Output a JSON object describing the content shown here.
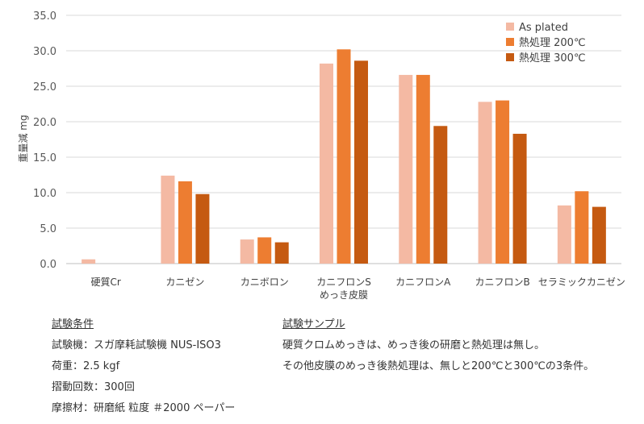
{
  "chart_data": {
    "type": "bar",
    "categories": [
      [
        "硬質Cr"
      ],
      [
        "カニゼン"
      ],
      [
        "カニボロン"
      ],
      [
        "カニフロンS",
        "めっき皮膜"
      ],
      [
        "カニフロンA"
      ],
      [
        "カニフロンB"
      ],
      [
        "セラミックカニゼン"
      ]
    ],
    "series": [
      {
        "name": "As plated",
        "color": "#F4B9A3",
        "values": [
          0.6,
          12.4,
          3.4,
          28.2,
          26.6,
          22.8,
          8.2
        ]
      },
      {
        "name": "熱処理 200℃",
        "color": "#ED7D31",
        "values": [
          null,
          11.6,
          3.7,
          30.2,
          26.6,
          23.0,
          10.2
        ]
      },
      {
        "name": "熱処理 300℃",
        "color": "#C55A11",
        "values": [
          null,
          9.8,
          3.0,
          28.6,
          19.4,
          18.3,
          8.0
        ]
      }
    ],
    "ylabel": "重量減 mg",
    "ylim": [
      0,
      35
    ],
    "yticks": [
      0.0,
      5.0,
      10.0,
      15.0,
      20.0,
      25.0,
      30.0,
      35.0
    ],
    "ytick_labels": [
      "0.0",
      "5.0",
      "10.0",
      "15.0",
      "20.0",
      "25.0",
      "30.0",
      "35.0"
    ],
    "grid": true,
    "legend_position": "top-right"
  },
  "conditions": {
    "title": "試験条件",
    "lines": [
      "試験機：スガ摩耗試験機 NUS-ISO3",
      "荷重：2.5 kgf",
      "摺動回数：300回",
      "摩擦材：研磨紙 粒度 ＃2000 ペーパー"
    ]
  },
  "sample": {
    "title": "試験サンプル",
    "lines": [
      "硬質クロムめっきは、めっき後の研磨と熱処理は無し。",
      "その他皮膜のめっき後熱処理は、無しと200℃と300℃の3条件。"
    ]
  }
}
